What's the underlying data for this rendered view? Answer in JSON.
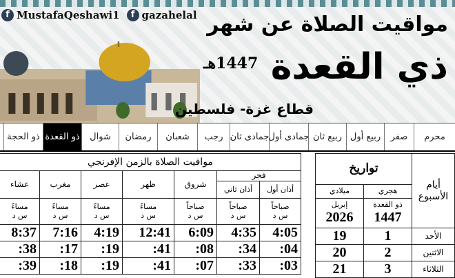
{
  "header": {
    "social": [
      "MustafaQeshawi1",
      "gazahelal"
    ],
    "title": "مواقيت الصلاة عن شهر",
    "month": "ذي القعدة",
    "year": "1447هـ",
    "region": "قطاع غزة- فلسطين"
  },
  "months": [
    "محرم",
    "صفر",
    "ربيع أول",
    "ربيع ثان",
    "جمادى أول",
    "جمادى ثان",
    "رجب",
    "شعبان",
    "رمضان",
    "شوال",
    "ذو القعدة",
    "ذو الحجة"
  ],
  "active_month": "ذو القعدة",
  "dates": {
    "title": "تواريخ",
    "days_header": "أيام الأسبوع",
    "hijri_label": "هجري",
    "gregorian_label": "ميلادي",
    "hijri_month": "ذو القعدة",
    "hijri_year": "1447",
    "greg_month": "إبريل",
    "greg_year": "2026",
    "rows": [
      {
        "day": "الأحد",
        "h": "1",
        "g": "19"
      },
      {
        "day": "الاثنين",
        "h": "2",
        "g": "20"
      },
      {
        "day": "الثلاثاء",
        "h": "3",
        "g": "21"
      }
    ]
  },
  "times": {
    "title": "مواقيت الصلاة بالزمن الإفرنجي",
    "fajr": "فجر",
    "adhan1": "أذان أول",
    "adhan2": "أذان ثاني",
    "shuruq": "شروق",
    "dhuhr": "ظهر",
    "asr": "عصر",
    "maghrib": "مغرب",
    "isha": "عشاء",
    "morning": "صباحاً",
    "evening": "مساءً",
    "units": "س   د",
    "rows": [
      [
        "4:05",
        "4:35",
        "6:09",
        "12:41",
        "4:19",
        "7:16",
        "8:37"
      ],
      [
        ":04",
        ":34",
        ":08",
        ":41",
        ":19",
        ":17",
        ":38"
      ],
      [
        ":03",
        ":33",
        ":07",
        ":41",
        ":19",
        ":18",
        ":39"
      ]
    ]
  }
}
